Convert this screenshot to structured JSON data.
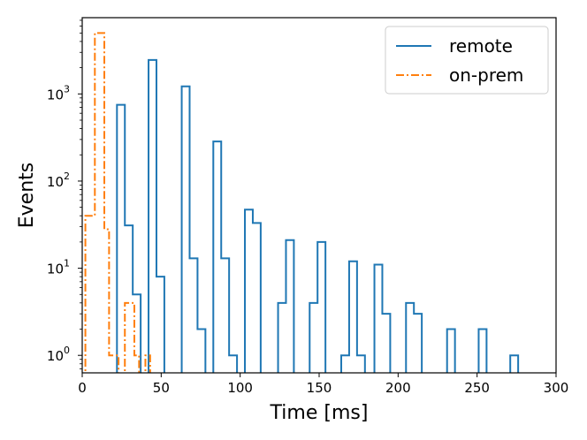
{
  "chart_data": {
    "type": "histogram",
    "title": "",
    "xlabel": "Time [ms]",
    "ylabel": "Events",
    "xlim": [
      0,
      300
    ],
    "ylim": [
      0.63,
      7500
    ],
    "yscale": "log",
    "grid": false,
    "legend_position": "top-right",
    "x_ticks": [
      "0",
      "50",
      "100",
      "150",
      "200",
      "250",
      "300"
    ],
    "y_ticks": [
      {
        "base": "10",
        "exp": "0"
      },
      {
        "base": "10",
        "exp": "1"
      },
      {
        "base": "10",
        "exp": "2"
      },
      {
        "base": "10",
        "exp": "3"
      }
    ],
    "series": [
      {
        "name": "remote",
        "color": "#1f77b4",
        "style": "solid",
        "bin_width": 5,
        "bins": [
          {
            "x": 22,
            "y": 750
          },
          {
            "x": 27,
            "y": 31
          },
          {
            "x": 32,
            "y": 5
          },
          {
            "x": 42,
            "y": 2450
          },
          {
            "x": 47,
            "y": 8
          },
          {
            "x": 63,
            "y": 1220
          },
          {
            "x": 68,
            "y": 13
          },
          {
            "x": 73,
            "y": 2
          },
          {
            "x": 83,
            "y": 285
          },
          {
            "x": 88,
            "y": 13
          },
          {
            "x": 93,
            "y": 1
          },
          {
            "x": 103,
            "y": 47
          },
          {
            "x": 108,
            "y": 33
          },
          {
            "x": 124,
            "y": 4
          },
          {
            "x": 129,
            "y": 21
          },
          {
            "x": 144,
            "y": 4
          },
          {
            "x": 149,
            "y": 20
          },
          {
            "x": 164,
            "y": 1
          },
          {
            "x": 169,
            "y": 12
          },
          {
            "x": 174,
            "y": 1
          },
          {
            "x": 185,
            "y": 11
          },
          {
            "x": 190,
            "y": 3
          },
          {
            "x": 205,
            "y": 4
          },
          {
            "x": 210,
            "y": 3
          },
          {
            "x": 231,
            "y": 2
          },
          {
            "x": 251,
            "y": 2
          },
          {
            "x": 271,
            "y": 1
          }
        ]
      },
      {
        "name": "on-prem",
        "color": "#ff7f0e",
        "style": "dashdot",
        "bin_width": 3,
        "bins": [
          {
            "x": 2,
            "y": 40
          },
          {
            "x": 5,
            "y": 40
          },
          {
            "x": 8,
            "y": 5000
          },
          {
            "x": 11,
            "y": 5000
          },
          {
            "x": 14,
            "y": 28
          },
          {
            "x": 17,
            "y": 1
          },
          {
            "x": 20,
            "y": 1
          },
          {
            "x": 27,
            "y": 4
          },
          {
            "x": 30,
            "y": 4
          },
          {
            "x": 33,
            "y": 1
          },
          {
            "x": 40,
            "y": 1
          }
        ]
      }
    ]
  }
}
